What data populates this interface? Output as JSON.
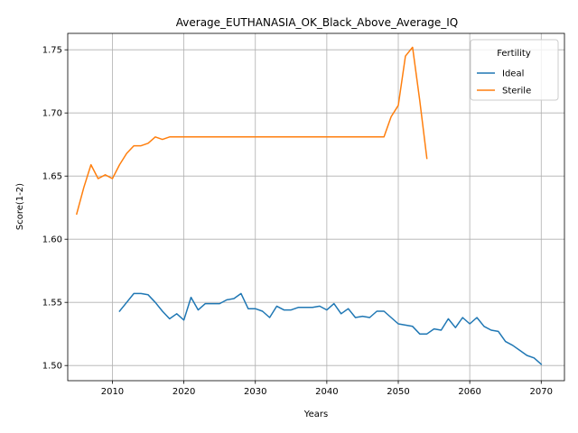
{
  "chart_data": {
    "type": "line",
    "title": "Average_EUTHANASIA_OK_Black_Above_Average_IQ",
    "xlabel": "Years",
    "ylabel": "Score(1-2)",
    "xlim": [
      2003.75,
      2073.25
    ],
    "ylim": [
      1.488,
      1.763
    ],
    "xticks": [
      2010,
      2020,
      2030,
      2040,
      2050,
      2060,
      2070
    ],
    "yticks": [
      1.5,
      1.55,
      1.6,
      1.65,
      1.7,
      1.75
    ],
    "ytick_labels": [
      "1.50",
      "1.55",
      "1.60",
      "1.65",
      "1.70",
      "1.75"
    ],
    "grid": true,
    "legend": {
      "title": "Fertility",
      "placement": "top-right"
    },
    "series": [
      {
        "name": "Ideal",
        "color": "#1f77b4",
        "x": [
          2011,
          2012,
          2013,
          2014,
          2015,
          2016,
          2017,
          2018,
          2019,
          2020,
          2021,
          2022,
          2023,
          2024,
          2025,
          2026,
          2027,
          2028,
          2029,
          2030,
          2031,
          2032,
          2033,
          2034,
          2035,
          2036,
          2037,
          2038,
          2039,
          2040,
          2041,
          2042,
          2043,
          2044,
          2045,
          2046,
          2047,
          2048,
          2049,
          2050,
          2051,
          2052,
          2053,
          2054,
          2055,
          2056,
          2057,
          2058,
          2059,
          2060,
          2061,
          2062,
          2063,
          2064,
          2065,
          2066,
          2067,
          2068,
          2069,
          2070
        ],
        "values": [
          1.543,
          1.55,
          1.557,
          1.557,
          1.556,
          1.55,
          1.543,
          1.537,
          1.541,
          1.536,
          1.554,
          1.544,
          1.549,
          1.549,
          1.549,
          1.552,
          1.553,
          1.557,
          1.545,
          1.545,
          1.543,
          1.538,
          1.547,
          1.544,
          1.544,
          1.546,
          1.546,
          1.546,
          1.547,
          1.544,
          1.549,
          1.541,
          1.545,
          1.538,
          1.539,
          1.538,
          1.543,
          1.543,
          1.538,
          1.533,
          1.532,
          1.531,
          1.525,
          1.525,
          1.529,
          1.528,
          1.537,
          1.53,
          1.538,
          1.533,
          1.538,
          1.531,
          1.528,
          1.527,
          1.519,
          1.516,
          1.512,
          1.508,
          1.506,
          1.501
        ]
      },
      {
        "name": "Sterile",
        "color": "#ff7f0e",
        "x": [
          2005,
          2006,
          2007,
          2008,
          2009,
          2010,
          2011,
          2012,
          2013,
          2014,
          2015,
          2016,
          2017,
          2018,
          2019,
          2020,
          2021,
          2022,
          2023,
          2024,
          2025,
          2026,
          2027,
          2028,
          2029,
          2030,
          2031,
          2032,
          2033,
          2034,
          2035,
          2036,
          2037,
          2038,
          2039,
          2040,
          2041,
          2042,
          2043,
          2044,
          2045,
          2046,
          2047,
          2048,
          2049,
          2050,
          2051,
          2052,
          2053,
          2054
        ],
        "values": [
          1.62,
          1.641,
          1.659,
          1.648,
          1.651,
          1.648,
          1.659,
          1.668,
          1.674,
          1.674,
          1.676,
          1.681,
          1.679,
          1.681,
          1.681,
          1.681,
          1.681,
          1.681,
          1.681,
          1.681,
          1.681,
          1.681,
          1.681,
          1.681,
          1.681,
          1.681,
          1.681,
          1.681,
          1.681,
          1.681,
          1.681,
          1.681,
          1.681,
          1.681,
          1.681,
          1.681,
          1.681,
          1.681,
          1.681,
          1.681,
          1.681,
          1.681,
          1.681,
          1.681,
          1.697,
          1.706,
          1.745,
          1.752,
          1.71,
          1.664
        ]
      }
    ]
  }
}
